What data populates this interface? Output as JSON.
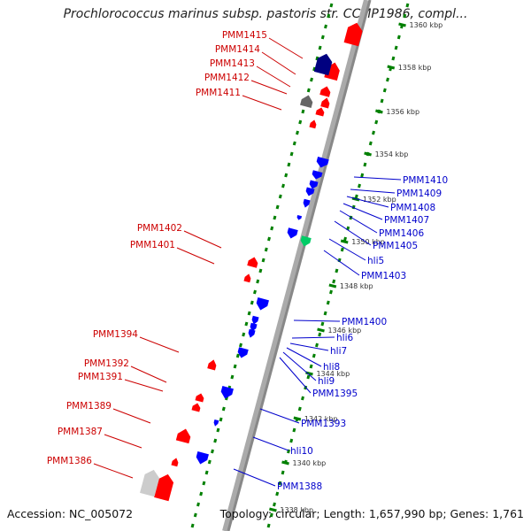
{
  "title": "Prochlorococcus marinus subsp. pastoris str. CCMP1986, compl...",
  "footer": {
    "accession": "Accession: NC_005072",
    "summary": "Topology: circular; Length: 1,657,990 bp; Genes: 1,761"
  },
  "colors": {
    "forward_strand": "#ff0000",
    "reverse_strand": "#0000ff",
    "forward_label": "#cc0000",
    "reverse_label": "#0000cc",
    "backbone": "#888888",
    "tick": "#008000",
    "rna_gene": "#00cc66",
    "dark_gene": "#000080",
    "pseudo_gene": "#666666"
  },
  "ticks": [
    "1338 kbp",
    "1340 kbp",
    "1342 kbp",
    "1344 kbp",
    "1346 kbp",
    "1348 kbp",
    "1350 kbp",
    "1352 kbp",
    "1354 kbp",
    "1356 kbp",
    "1358 kbp",
    "1360 kbp"
  ],
  "forward_labels": [
    "PMM1415",
    "PMM1414",
    "PMM1413",
    "PMM1412",
    "PMM1411",
    "PMM1402",
    "PMM1401",
    "PMM1394",
    "PMM1392",
    "PMM1391",
    "PMM1389",
    "PMM1387",
    "PMM1386"
  ],
  "reverse_labels": [
    "PMM1410",
    "PMM1409",
    "PMM1408",
    "PMM1407",
    "PMM1406",
    "PMM1405",
    "hli5",
    "PMM1403",
    "PMM1400",
    "hli6",
    "hli7",
    "hli8",
    "hli9",
    "PMM1395",
    "PMM1393",
    "hli10",
    "PMM1388"
  ]
}
